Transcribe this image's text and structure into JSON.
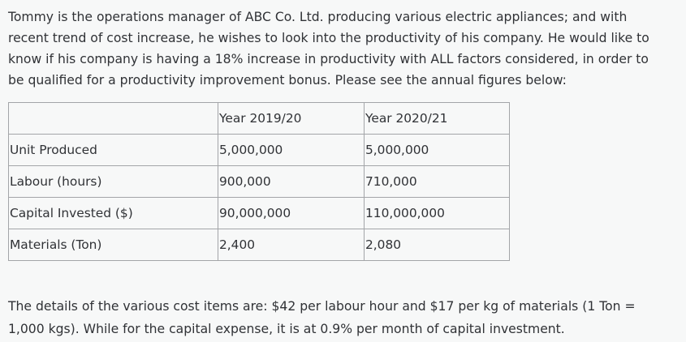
{
  "intro_lines": [
    "Tommy is the operations manager of ABC Co. Ltd. producing various electric appliances; and with",
    "recent trend of cost increase, he wishes to look into the productivity of his company. He would like to",
    "know if his company is having a 18% increase in productivity with ALL factors considered, in order to",
    "be qualified for a productivity improvement bonus. Please see the annual figures below:"
  ],
  "table": {
    "headers": [
      "",
      "Year 2019/20",
      "Year 2020/21"
    ],
    "rows": [
      [
        "Unit Produced",
        "5,000,000",
        "5,000,000"
      ],
      [
        "Labour (hours)",
        "900,000",
        "710,000"
      ],
      [
        "Capital Invested ($)",
        "90,000,000",
        "110,000,000"
      ],
      [
        "Materials (Ton)",
        "2,400",
        "2,080"
      ]
    ]
  },
  "details_lines": [
    "The details of the various cost items are: $42 per labour hour and $17 per kg of materials (1 Ton =",
    "1,000 kgs). While for the capital expense, it is at 0.9% per month of capital investment."
  ]
}
